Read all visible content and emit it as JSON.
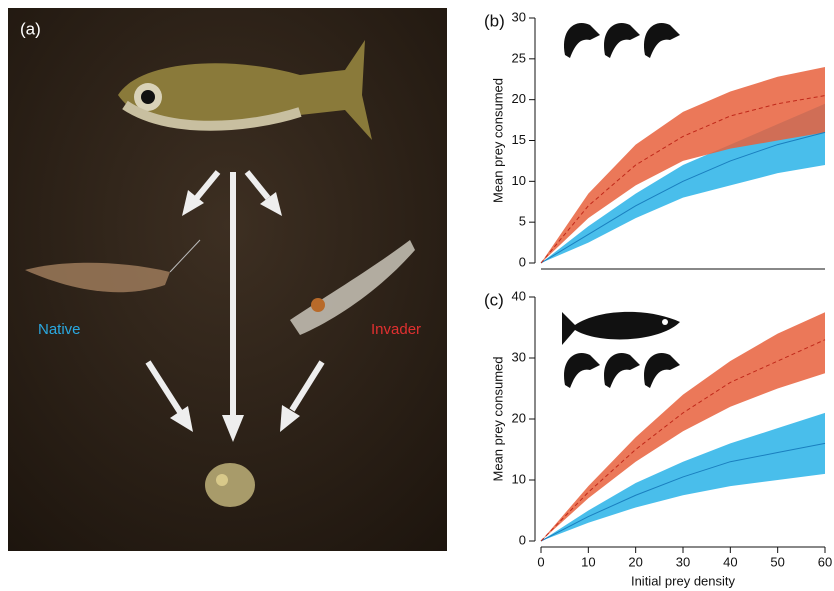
{
  "panel_a": {
    "label": "(a)",
    "native_label": "Native",
    "invader_label": "Invader"
  },
  "chart_data": [
    {
      "type": "line",
      "label": "(b)",
      "y_label": "Mean prey consumed",
      "x": [
        0,
        10,
        20,
        30,
        40,
        50,
        60
      ],
      "xlim": [
        0,
        60
      ],
      "ylim": [
        0,
        30
      ],
      "yticks": [
        0,
        5,
        10,
        15,
        20,
        25,
        30
      ],
      "series": [
        {
          "color": "#29b3e8",
          "dashed": false,
          "values": [
            0,
            3.5,
            7,
            10,
            12.5,
            14.5,
            16
          ],
          "lower": [
            0,
            2.5,
            5.5,
            8,
            9.5,
            11,
            12
          ],
          "upper": [
            0,
            4.5,
            8.5,
            12,
            14.5,
            17,
            19.5
          ]
        },
        {
          "color": "#e8603c",
          "dashed": true,
          "values": [
            0,
            7,
            12,
            15.5,
            18,
            19.5,
            20.5
          ],
          "lower": [
            0,
            5.5,
            9.5,
            12.5,
            14,
            15,
            16
          ],
          "upper": [
            0,
            8.5,
            14.5,
            18.5,
            21,
            22.8,
            24
          ]
        }
      ]
    },
    {
      "type": "line",
      "label": "(c)",
      "y_label": "Mean prey consumed",
      "x_label": "Initial prey density",
      "x": [
        0,
        10,
        20,
        30,
        40,
        50,
        60
      ],
      "xlim": [
        0,
        60
      ],
      "ylim": [
        0,
        40
      ],
      "yticks": [
        0,
        10,
        20,
        30,
        40
      ],
      "xticks": [
        0,
        10,
        20,
        30,
        40,
        50,
        60
      ],
      "series": [
        {
          "color": "#29b3e8",
          "dashed": false,
          "values": [
            0,
            4,
            7.5,
            10.5,
            13,
            14.5,
            16
          ],
          "lower": [
            0,
            3,
            5.5,
            7.5,
            9,
            10,
            11
          ],
          "upper": [
            0,
            5,
            9.5,
            13,
            16,
            18.5,
            21
          ]
        },
        {
          "color": "#e8603c",
          "dashed": true,
          "values": [
            0,
            8,
            15,
            21,
            26,
            29.5,
            33
          ],
          "lower": [
            0,
            7,
            13,
            18,
            22,
            25,
            27.5
          ],
          "upper": [
            0,
            9,
            17,
            24,
            29.5,
            34,
            37.5
          ]
        }
      ]
    }
  ]
}
